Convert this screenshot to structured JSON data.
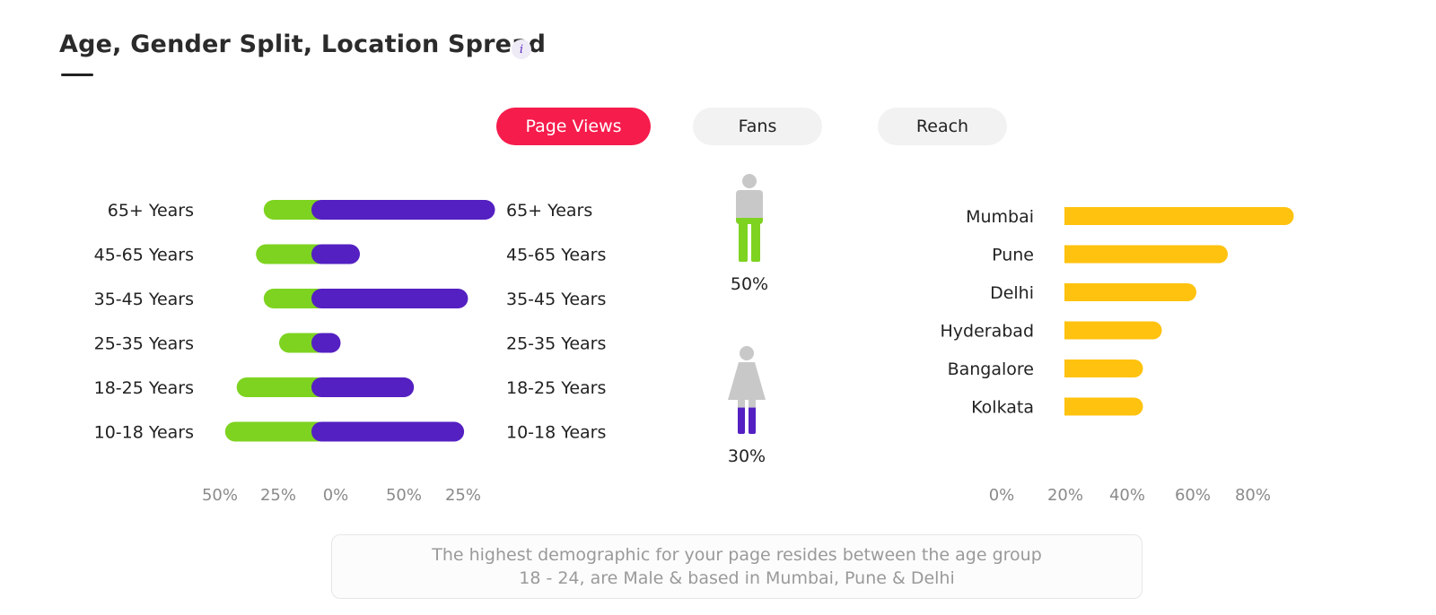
{
  "header": {
    "title": "Age, Gender Split, Location Spread",
    "info_icon": "i"
  },
  "tabs": [
    {
      "label": "Page Views",
      "active": true
    },
    {
      "label": "Fans",
      "active": false
    },
    {
      "label": "Reach",
      "active": false
    }
  ],
  "colors": {
    "female": "#7ed321",
    "male": "#5420c2",
    "location": "#ffc20e",
    "active_tab": "#f61c4c",
    "figure_gray": "#c8c8c8"
  },
  "chart_data": [
    {
      "type": "bar",
      "orientation": "horizontal-diverging",
      "categories": [
        "65+ Years",
        "45-65 Years",
        "35-45 Years",
        "25-35 Years",
        "18-25 Years",
        "10-18 Years"
      ],
      "left_series": {
        "values": [
          14,
          16,
          14,
          10,
          21,
          24
        ]
      },
      "right_series": {
        "values": [
          45,
          10,
          38,
          5,
          24,
          37
        ]
      },
      "x_ticks": [
        "50%",
        "25%",
        "0%",
        "50%",
        "25%"
      ]
    },
    {
      "type": "bar",
      "orientation": "pictogram",
      "figures": [
        {
          "icon": "male-figure-icon",
          "value": 50,
          "label": "50%"
        },
        {
          "icon": "female-figure-icon",
          "value": 30,
          "label": "30%"
        }
      ]
    },
    {
      "type": "bar",
      "orientation": "horizontal",
      "categories": [
        "Mumbai",
        "Pune",
        "Delhi",
        "Hyderabad",
        "Bangalore",
        "Kolkata"
      ],
      "values": [
        73,
        52,
        42,
        31,
        25,
        25
      ],
      "x_ticks": [
        "0%",
        "20%",
        "40%",
        "60%",
        "80%"
      ]
    }
  ],
  "insight": {
    "line1": "The highest demographic for your page resides between the age group",
    "line2": "18 - 24, are Male & based in Mumbai, Pune & Delhi"
  }
}
